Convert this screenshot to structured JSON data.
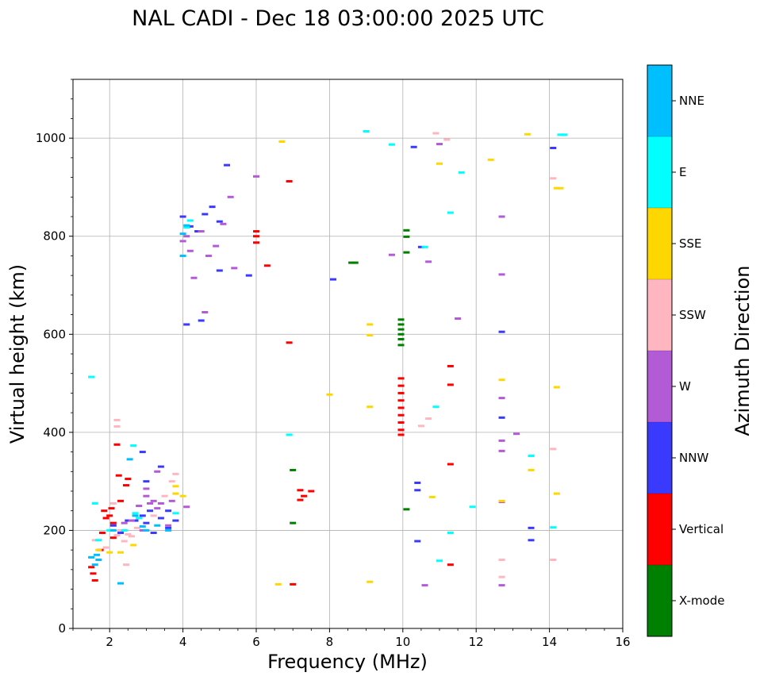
{
  "chart_data": {
    "type": "scatter",
    "title": "NAL CADI - Dec 18 03:00:00 2025 UTC",
    "xlabel": "Frequency (MHz)",
    "ylabel": "Virtual height (km)",
    "xlim": [
      1,
      16
    ],
    "ylim": [
      0,
      1120
    ],
    "xticks": [
      2,
      4,
      6,
      8,
      10,
      12,
      14,
      16
    ],
    "yticks": [
      0,
      200,
      400,
      600,
      800,
      1000
    ],
    "grid": true,
    "colorbar": {
      "label": "Azimuth Direction",
      "categories": [
        {
          "name": "X-mode",
          "color": "#008000"
        },
        {
          "name": "Vertical",
          "color": "#ff0000"
        },
        {
          "name": "NNW",
          "color": "#3a3aff"
        },
        {
          "name": "W",
          "color": "#b35ad6"
        },
        {
          "name": "SSW",
          "color": "#ffb6c1"
        },
        {
          "name": "SSE",
          "color": "#ffd700"
        },
        {
          "name": "E",
          "color": "#00ffff"
        },
        {
          "name": "NNE",
          "color": "#00bfff"
        }
      ]
    },
    "series": [
      {
        "name": "X-mode",
        "points": [
          [
            7.0,
            323
          ],
          [
            7.0,
            215
          ],
          [
            8.6,
            746
          ],
          [
            8.7,
            746
          ],
          [
            10.1,
            812
          ],
          [
            10.1,
            799
          ],
          [
            10.1,
            767
          ],
          [
            10.1,
            243
          ],
          [
            9.95,
            630
          ],
          [
            9.95,
            620
          ],
          [
            9.95,
            610
          ],
          [
            9.95,
            600
          ],
          [
            9.95,
            590
          ],
          [
            9.95,
            578
          ]
        ]
      },
      {
        "name": "Vertical",
        "points": [
          [
            1.5,
            125
          ],
          [
            1.55,
            112
          ],
          [
            1.6,
            98
          ],
          [
            1.75,
            160
          ],
          [
            1.8,
            195
          ],
          [
            1.85,
            240
          ],
          [
            1.9,
            225
          ],
          [
            2.0,
            230
          ],
          [
            2.05,
            245
          ],
          [
            2.1,
            215
          ],
          [
            2.2,
            375
          ],
          [
            2.25,
            312
          ],
          [
            2.3,
            260
          ],
          [
            2.45,
            292
          ],
          [
            2.5,
            305
          ],
          [
            2.1,
            185
          ],
          [
            6.0,
            810
          ],
          [
            6.0,
            800
          ],
          [
            6.0,
            787
          ],
          [
            6.3,
            740
          ],
          [
            6.9,
            912
          ],
          [
            6.9,
            583
          ],
          [
            7.0,
            90
          ],
          [
            7.2,
            282
          ],
          [
            7.2,
            262
          ],
          [
            7.3,
            270
          ],
          [
            7.5,
            280
          ],
          [
            9.95,
            510
          ],
          [
            9.95,
            495
          ],
          [
            9.95,
            480
          ],
          [
            9.95,
            465
          ],
          [
            9.95,
            450
          ],
          [
            9.95,
            435
          ],
          [
            9.95,
            420
          ],
          [
            9.95,
            405
          ],
          [
            9.95,
            395
          ],
          [
            11.3,
            535
          ],
          [
            11.3,
            497
          ],
          [
            11.3,
            335
          ],
          [
            11.3,
            130
          ]
        ]
      },
      {
        "name": "NNW",
        "points": [
          [
            2.1,
            210
          ],
          [
            2.3,
            195
          ],
          [
            2.5,
            220
          ],
          [
            2.7,
            220
          ],
          [
            2.9,
            230
          ],
          [
            3.0,
            215
          ],
          [
            3.1,
            240
          ],
          [
            3.2,
            195
          ],
          [
            3.4,
            225
          ],
          [
            3.6,
            205
          ],
          [
            3.8,
            220
          ],
          [
            2.9,
            360
          ],
          [
            3.4,
            330
          ],
          [
            3.0,
            300
          ],
          [
            3.6,
            240
          ],
          [
            4.0,
            840
          ],
          [
            4.2,
            820
          ],
          [
            4.4,
            810
          ],
          [
            4.6,
            845
          ],
          [
            4.8,
            860
          ],
          [
            5.0,
            830
          ],
          [
            5.2,
            945
          ],
          [
            4.1,
            620
          ],
          [
            4.5,
            628
          ],
          [
            5.0,
            730
          ],
          [
            5.8,
            720
          ],
          [
            8.1,
            712
          ],
          [
            10.3,
            982
          ],
          [
            10.4,
            297
          ],
          [
            10.4,
            282
          ],
          [
            10.4,
            178
          ],
          [
            10.5,
            778
          ],
          [
            12.7,
            605
          ],
          [
            12.7,
            430
          ],
          [
            13.5,
            205
          ],
          [
            13.5,
            180
          ],
          [
            14.1,
            980
          ]
        ]
      },
      {
        "name": "W",
        "points": [
          [
            2.4,
            215
          ],
          [
            2.6,
            220
          ],
          [
            2.8,
            250
          ],
          [
            3.0,
            270
          ],
          [
            3.1,
            255
          ],
          [
            3.2,
            260
          ],
          [
            3.3,
            245
          ],
          [
            3.4,
            255
          ],
          [
            3.0,
            285
          ],
          [
            2.9,
            200
          ],
          [
            3.6,
            210
          ],
          [
            3.7,
            260
          ],
          [
            4.1,
            248
          ],
          [
            3.3,
            320
          ],
          [
            4.0,
            790
          ],
          [
            4.1,
            800
          ],
          [
            4.2,
            770
          ],
          [
            4.3,
            715
          ],
          [
            4.5,
            810
          ],
          [
            4.7,
            760
          ],
          [
            4.9,
            780
          ],
          [
            5.1,
            825
          ],
          [
            5.3,
            880
          ],
          [
            5.4,
            735
          ],
          [
            4.6,
            645
          ],
          [
            6.0,
            922
          ],
          [
            9.7,
            762
          ],
          [
            10.7,
            748
          ],
          [
            11.5,
            632
          ],
          [
            12.7,
            840
          ],
          [
            12.7,
            722
          ],
          [
            12.7,
            470
          ],
          [
            12.7,
            383
          ],
          [
            12.7,
            362
          ],
          [
            12.7,
            258
          ],
          [
            12.7,
            88
          ],
          [
            13.1,
            397
          ],
          [
            10.6,
            88
          ],
          [
            11.0,
            988
          ]
        ]
      },
      {
        "name": "SSW",
        "points": [
          [
            1.6,
            180
          ],
          [
            1.9,
            165
          ],
          [
            2.2,
            190
          ],
          [
            2.3,
            200
          ],
          [
            2.5,
            192
          ],
          [
            2.6,
            188
          ],
          [
            2.4,
            178
          ],
          [
            2.75,
            205
          ],
          [
            3.2,
            230
          ],
          [
            3.5,
            270
          ],
          [
            3.7,
            300
          ],
          [
            3.8,
            315
          ],
          [
            2.2,
            425
          ],
          [
            2.2,
            412
          ],
          [
            2.1,
            255
          ],
          [
            2.45,
            130
          ],
          [
            10.5,
            413
          ],
          [
            10.7,
            428
          ],
          [
            10.9,
            1010
          ],
          [
            11.2,
            997
          ],
          [
            12.7,
            140
          ],
          [
            12.7,
            105
          ],
          [
            14.1,
            918
          ],
          [
            14.1,
            366
          ],
          [
            14.1,
            140
          ]
        ]
      },
      {
        "name": "SSE",
        "points": [
          [
            1.7,
            160
          ],
          [
            2.0,
            155
          ],
          [
            2.3,
            155
          ],
          [
            2.65,
            170
          ],
          [
            3.8,
            290
          ],
          [
            3.8,
            275
          ],
          [
            4.0,
            270
          ],
          [
            6.6,
            90
          ],
          [
            6.7,
            993
          ],
          [
            8.0,
            477
          ],
          [
            9.1,
            620
          ],
          [
            9.1,
            598
          ],
          [
            9.1,
            452
          ],
          [
            9.1,
            95
          ],
          [
            10.8,
            268
          ],
          [
            11.0,
            948
          ],
          [
            12.4,
            956
          ],
          [
            12.7,
            507
          ],
          [
            12.7,
            260
          ],
          [
            13.4,
            1008
          ],
          [
            13.5,
            323
          ],
          [
            14.2,
            898
          ],
          [
            14.3,
            898
          ],
          [
            14.2,
            492
          ],
          [
            14.2,
            275
          ]
        ]
      },
      {
        "name": "E",
        "points": [
          [
            1.5,
            513
          ],
          [
            1.6,
            255
          ],
          [
            1.7,
            180
          ],
          [
            2.0,
            200
          ],
          [
            2.4,
            200
          ],
          [
            2.7,
            235
          ],
          [
            2.8,
            225
          ],
          [
            2.65,
            373
          ],
          [
            3.8,
            235
          ],
          [
            4.1,
            818
          ],
          [
            4.2,
            832
          ],
          [
            6.9,
            395
          ],
          [
            9.0,
            1014
          ],
          [
            9.7,
            987
          ],
          [
            10.6,
            778
          ],
          [
            10.9,
            452
          ],
          [
            11.0,
            138
          ],
          [
            11.3,
            848
          ],
          [
            11.3,
            195
          ],
          [
            11.6,
            930
          ],
          [
            11.9,
            248
          ],
          [
            13.5,
            352
          ],
          [
            14.3,
            1007
          ],
          [
            14.1,
            206
          ],
          [
            14.4,
            1007
          ]
        ]
      },
      {
        "name": "NNE",
        "points": [
          [
            1.5,
            145
          ],
          [
            1.6,
            130
          ],
          [
            1.65,
            150
          ],
          [
            1.7,
            140
          ],
          [
            2.1,
            200
          ],
          [
            2.3,
            92
          ],
          [
            2.55,
            345
          ],
          [
            2.7,
            230
          ],
          [
            2.9,
            208
          ],
          [
            3.0,
            200
          ],
          [
            3.3,
            210
          ],
          [
            3.6,
            200
          ],
          [
            4.0,
            805
          ],
          [
            4.1,
            822
          ],
          [
            4.0,
            760
          ]
        ]
      }
    ]
  }
}
